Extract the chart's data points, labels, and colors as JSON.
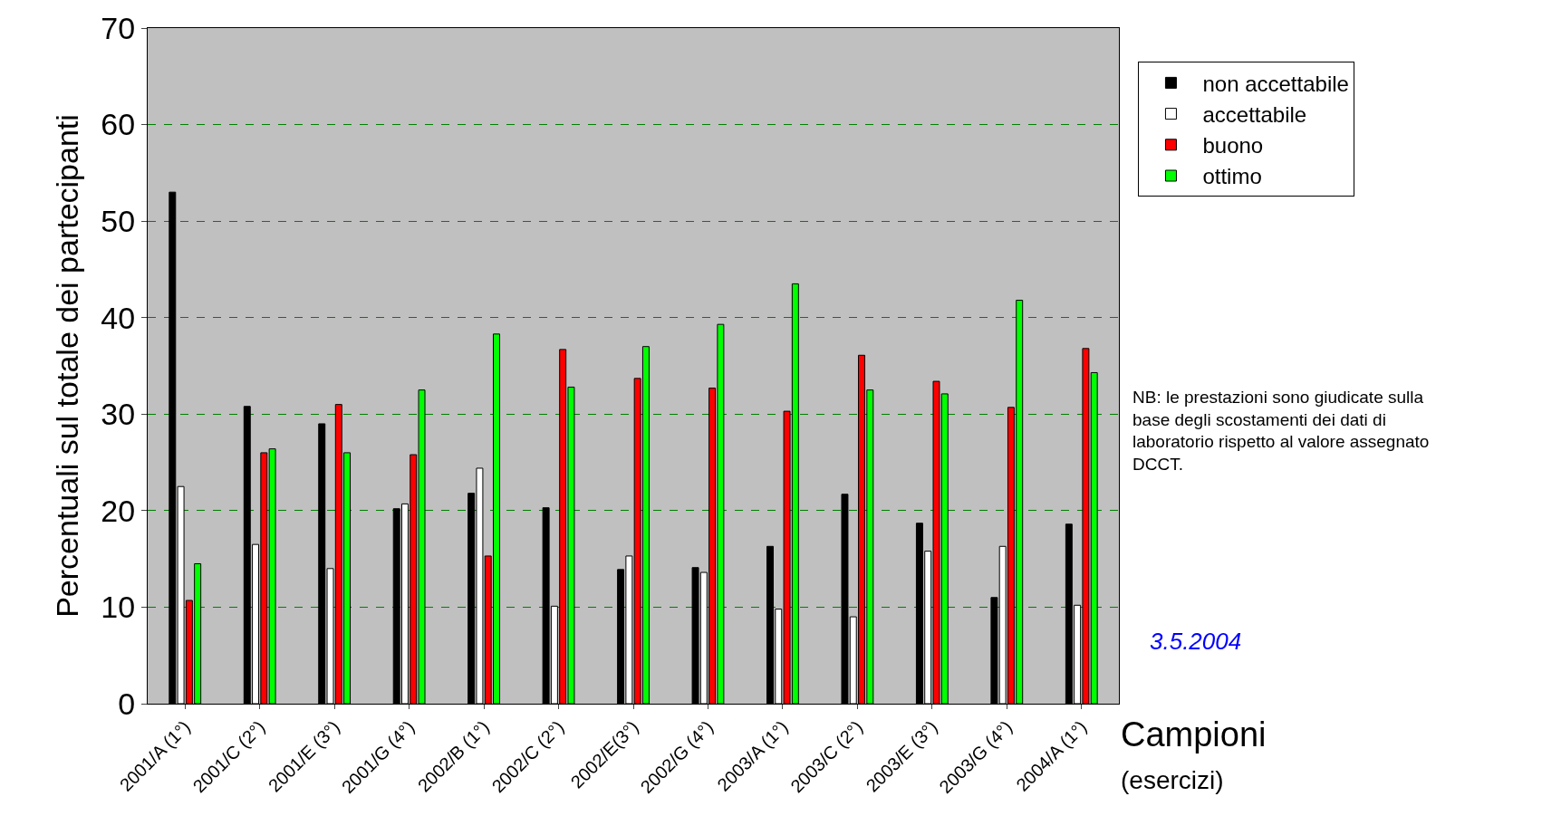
{
  "chart_data": {
    "type": "bar",
    "ylabel": "Percentuali sul totale dei partecipanti",
    "xlabel": "Campioni",
    "categories": [
      "2001/A (1°)",
      "2001/C (2°)",
      "2001/E (3°)",
      "2001/G (4°)",
      "2002/B (1°)",
      "2002/C (2°)",
      "2002/E(3°)",
      "2002/G (4°)",
      "2003/A (1°)",
      "2003/C (2°)",
      "2003/E (3°)",
      "2003/G (4°)",
      "2004/A (1°)"
    ],
    "series": [
      {
        "name": "non accettabile",
        "color": "#000000",
        "values": [
          53,
          30.8,
          29,
          20.2,
          21.8,
          20.3,
          13.9,
          14.1,
          16.3,
          21.7,
          18.7,
          11,
          18.6
        ]
      },
      {
        "name": "accettabile",
        "color": "#ffffff",
        "values": [
          22.5,
          16.5,
          14,
          20.7,
          24.4,
          10.1,
          15.3,
          13.6,
          9.8,
          9,
          15.8,
          16.3,
          10.2
        ]
      },
      {
        "name": "buono",
        "color": "#ff0000",
        "values": [
          10.7,
          26,
          31,
          25.8,
          15.3,
          36.7,
          33.7,
          32.7,
          30.3,
          36.1,
          33.4,
          30.7,
          36.8
        ]
      },
      {
        "name": "ottimo",
        "color": "#00ff00",
        "values": [
          14.5,
          26.4,
          26,
          32.5,
          38.3,
          32.8,
          37,
          39.3,
          43.5,
          32.5,
          32.1,
          41.8,
          34.3
        ]
      }
    ],
    "ylim": [
      0,
      70
    ],
    "yticks": [
      0,
      10,
      20,
      30,
      40,
      50,
      60,
      70
    ],
    "grid": "y",
    "legend": "top right",
    "annotations": [
      "(esercizi)",
      "NB: le prestazioni sono giudicate sulla\nbase degli scostamenti dei dati di\nlaboratorio rispetto al valore assegnato\nDCCT.",
      "3.5.2004"
    ]
  }
}
